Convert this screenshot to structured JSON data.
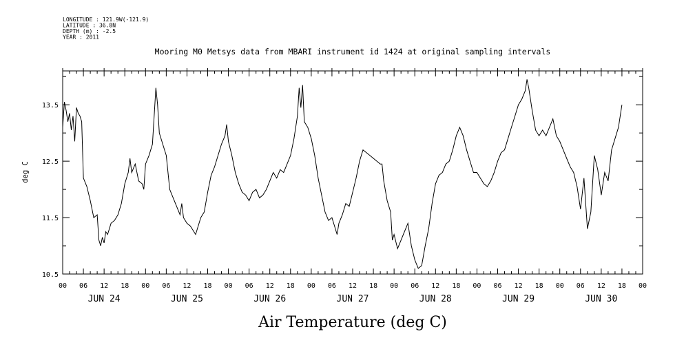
{
  "header": {
    "meta_lines": [
      "LONGITUDE : 121.9W(-121.9)",
      "LATITUDE : 36.8N",
      "DEPTH (m) : -2.5",
      "YEAR : 2011"
    ],
    "title": "Mooring M0 Metsys data from MBARI instrument id 1424 at original sampling intervals"
  },
  "caption": "Air Temperature (deg C)",
  "chart_data": {
    "type": "line",
    "title": "Mooring M0 Metsys data from MBARI instrument id 1424 at original sampling intervals",
    "xlabel": "",
    "ylabel": "deg C",
    "ylim": [
      10.5,
      14.1
    ],
    "yticks": [
      10.5,
      11.5,
      12.5,
      13.5
    ],
    "x_unit": "hours since JUN 24 00:00 (2011)",
    "xlim": [
      0,
      168
    ],
    "xtick_labels": [
      "00",
      "06",
      "12",
      "18",
      "00",
      "06",
      "12",
      "18",
      "00",
      "06",
      "12",
      "18",
      "00",
      "06",
      "12",
      "18",
      "00",
      "06",
      "12",
      "18",
      "00",
      "06",
      "12",
      "18",
      "00",
      "06",
      "12",
      "18",
      "00"
    ],
    "day_labels": [
      "JUN 24",
      "JUN 25",
      "JUN 26",
      "JUN 27",
      "JUN 28",
      "JUN 29",
      "JUN 30"
    ],
    "grid": false,
    "series": [
      {
        "name": "",
        "points": [
          [
            0,
            13.1
          ],
          [
            0.5,
            13.55
          ],
          [
            1,
            13.4
          ],
          [
            1.5,
            13.2
          ],
          [
            2,
            13.35
          ],
          [
            2.5,
            13.05
          ],
          [
            3,
            13.3
          ],
          [
            3.5,
            12.85
          ],
          [
            4,
            13.45
          ],
          [
            4.5,
            13.35
          ],
          [
            5,
            13.3
          ],
          [
            5.5,
            13.2
          ],
          [
            6,
            12.2
          ],
          [
            7,
            12.05
          ],
          [
            8,
            11.8
          ],
          [
            9,
            11.5
          ],
          [
            10,
            11.55
          ],
          [
            10.5,
            11.1
          ],
          [
            11,
            11.0
          ],
          [
            11.5,
            11.15
          ],
          [
            12,
            11.05
          ],
          [
            12.5,
            11.25
          ],
          [
            13,
            11.2
          ],
          [
            14,
            11.4
          ],
          [
            15,
            11.45
          ],
          [
            16,
            11.55
          ],
          [
            17,
            11.75
          ],
          [
            18,
            12.1
          ],
          [
            19,
            12.3
          ],
          [
            19.5,
            12.55
          ],
          [
            20,
            12.3
          ],
          [
            21,
            12.45
          ],
          [
            22,
            12.15
          ],
          [
            23,
            12.1
          ],
          [
            23.5,
            12.0
          ],
          [
            24,
            12.45
          ],
          [
            25,
            12.6
          ],
          [
            26,
            12.8
          ],
          [
            26.5,
            13.3
          ],
          [
            27,
            13.8
          ],
          [
            27.5,
            13.5
          ],
          [
            28,
            13.0
          ],
          [
            29,
            12.8
          ],
          [
            30,
            12.6
          ],
          [
            31,
            12.0
          ],
          [
            32,
            11.85
          ],
          [
            33,
            11.7
          ],
          [
            34,
            11.55
          ],
          [
            34.5,
            11.75
          ],
          [
            35,
            11.5
          ],
          [
            36,
            11.4
          ],
          [
            37,
            11.35
          ],
          [
            38,
            11.25
          ],
          [
            38.5,
            11.2
          ],
          [
            39,
            11.3
          ],
          [
            40,
            11.5
          ],
          [
            41,
            11.6
          ],
          [
            42,
            11.95
          ],
          [
            43,
            12.25
          ],
          [
            44,
            12.4
          ],
          [
            45,
            12.6
          ],
          [
            46,
            12.8
          ],
          [
            47,
            12.95
          ],
          [
            47.5,
            13.15
          ],
          [
            48,
            12.85
          ],
          [
            49,
            12.6
          ],
          [
            50,
            12.3
          ],
          [
            51,
            12.1
          ],
          [
            52,
            11.95
          ],
          [
            53,
            11.9
          ],
          [
            54,
            11.8
          ],
          [
            55,
            11.95
          ],
          [
            56,
            12.0
          ],
          [
            57,
            11.85
          ],
          [
            58,
            11.9
          ],
          [
            59,
            12.0
          ],
          [
            60,
            12.15
          ],
          [
            61,
            12.3
          ],
          [
            62,
            12.2
          ],
          [
            63,
            12.35
          ],
          [
            64,
            12.3
          ],
          [
            65,
            12.45
          ],
          [
            66,
            12.6
          ],
          [
            67,
            12.9
          ],
          [
            68,
            13.3
          ],
          [
            68.5,
            13.8
          ],
          [
            69,
            13.45
          ],
          [
            69.5,
            13.85
          ],
          [
            70,
            13.2
          ],
          [
            71,
            13.1
          ],
          [
            72,
            12.9
          ],
          [
            73,
            12.6
          ],
          [
            74,
            12.2
          ],
          [
            75,
            11.9
          ],
          [
            76,
            11.6
          ],
          [
            77,
            11.45
          ],
          [
            78,
            11.5
          ],
          [
            79,
            11.3
          ],
          [
            79.5,
            11.2
          ],
          [
            80,
            11.4
          ],
          [
            81,
            11.55
          ],
          [
            82,
            11.75
          ],
          [
            83,
            11.7
          ],
          [
            84,
            11.95
          ],
          [
            85,
            12.2
          ],
          [
            86,
            12.5
          ],
          [
            87,
            12.7
          ],
          [
            88,
            12.65
          ],
          [
            89,
            12.6
          ],
          [
            90,
            12.55
          ],
          [
            91,
            12.5
          ],
          [
            92,
            12.45
          ],
          [
            92.5,
            12.45
          ],
          [
            93,
            12.15
          ],
          [
            94,
            11.8
          ],
          [
            95,
            11.6
          ],
          [
            95.5,
            11.1
          ],
          [
            96,
            11.2
          ],
          [
            97,
            10.95
          ],
          [
            98,
            11.1
          ],
          [
            99,
            11.25
          ],
          [
            100,
            11.4
          ],
          [
            101,
            11.0
          ],
          [
            102,
            10.75
          ],
          [
            103,
            10.6
          ],
          [
            104,
            10.65
          ],
          [
            105,
            11.0
          ],
          [
            106,
            11.3
          ],
          [
            107,
            11.75
          ],
          [
            108,
            12.1
          ],
          [
            109,
            12.25
          ],
          [
            110,
            12.3
          ],
          [
            111,
            12.45
          ],
          [
            112,
            12.5
          ],
          [
            113,
            12.7
          ],
          [
            114,
            12.95
          ],
          [
            115,
            13.1
          ],
          [
            116,
            12.95
          ],
          [
            117,
            12.7
          ],
          [
            118,
            12.5
          ],
          [
            119,
            12.3
          ],
          [
            120,
            12.3
          ],
          [
            121,
            12.2
          ],
          [
            122,
            12.1
          ],
          [
            123,
            12.05
          ],
          [
            124,
            12.15
          ],
          [
            125,
            12.3
          ],
          [
            126,
            12.5
          ],
          [
            127,
            12.65
          ],
          [
            128,
            12.7
          ],
          [
            129,
            12.9
          ],
          [
            130,
            13.1
          ],
          [
            131,
            13.3
          ],
          [
            132,
            13.5
          ],
          [
            133,
            13.6
          ],
          [
            134,
            13.75
          ],
          [
            134.5,
            13.95
          ],
          [
            135,
            13.8
          ],
          [
            136,
            13.4
          ],
          [
            137,
            13.05
          ],
          [
            138,
            12.95
          ],
          [
            139,
            13.05
          ],
          [
            140,
            12.95
          ],
          [
            141,
            13.1
          ],
          [
            142,
            13.25
          ],
          [
            143,
            12.95
          ],
          [
            144,
            12.85
          ],
          [
            145,
            12.7
          ],
          [
            146,
            12.55
          ],
          [
            147,
            12.4
          ],
          [
            148,
            12.3
          ],
          [
            149,
            12.05
          ],
          [
            150,
            11.65
          ],
          [
            151,
            12.2
          ],
          [
            152,
            11.3
          ],
          [
            153,
            11.6
          ],
          [
            154,
            12.6
          ],
          [
            155,
            12.35
          ],
          [
            156,
            11.9
          ],
          [
            157,
            12.3
          ],
          [
            158,
            12.15
          ],
          [
            159,
            12.7
          ],
          [
            160,
            12.9
          ],
          [
            161,
            13.1
          ],
          [
            162,
            13.5
          ]
        ]
      }
    ]
  }
}
